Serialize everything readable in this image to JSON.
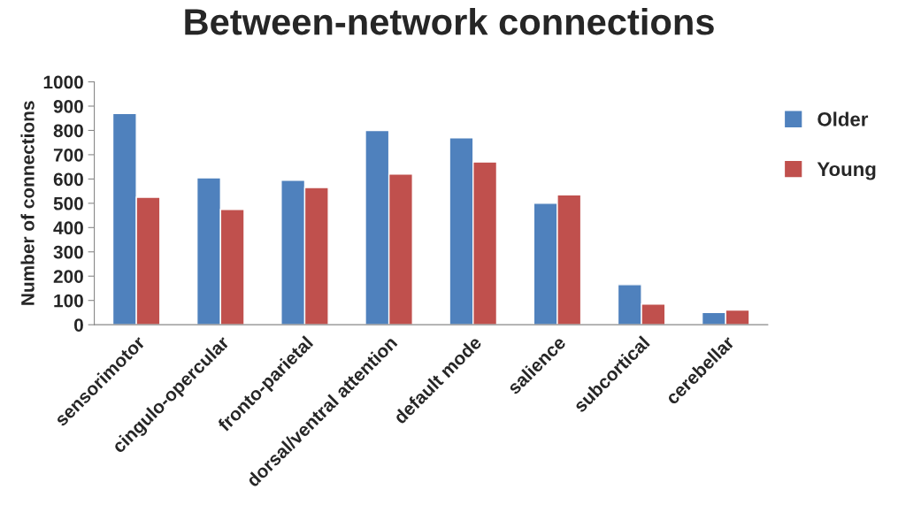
{
  "chart_data": {
    "type": "bar",
    "title": "Between-network connections",
    "ylabel": "Number of connections",
    "categories": [
      "sensorimotor",
      "cingulo-opercular",
      "fronto-parietal",
      "dorsal/ventral attention",
      "default mode",
      "salience",
      "subcortical",
      "cerebellar"
    ],
    "series": [
      {
        "name": "Older",
        "color": "#4f81bd",
        "values": [
          870,
          605,
          595,
          800,
          770,
          500,
          165,
          50
        ]
      },
      {
        "name": "Young",
        "color": "#c0504d",
        "values": [
          525,
          475,
          565,
          620,
          670,
          535,
          85,
          60
        ]
      }
    ],
    "ylim": [
      0,
      1000
    ],
    "yticks": [
      0,
      100,
      200,
      300,
      400,
      500,
      600,
      700,
      800,
      900,
      1000
    ],
    "grid": false,
    "legend": "top right"
  }
}
